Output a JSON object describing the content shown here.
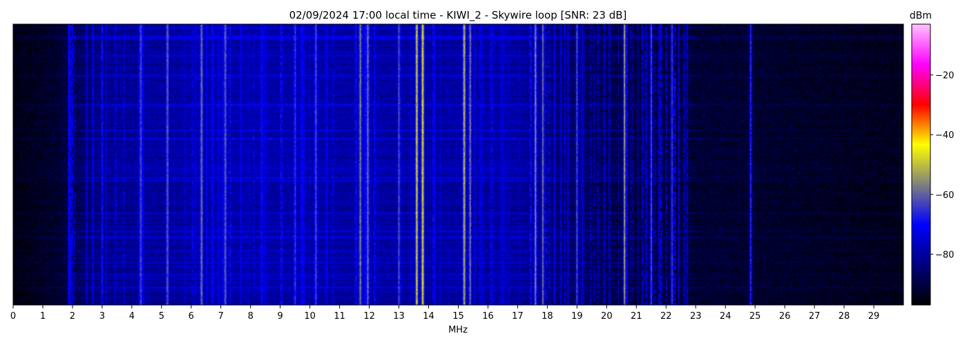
{
  "chart_data": {
    "type": "heatmap",
    "title": "02/09/2024 17:00 local time - KIWI_2 - Skywire loop [SNR: 23 dB]",
    "xlabel": "MHz",
    "ylabel": "",
    "xlim": [
      0,
      30
    ],
    "x_ticks": [
      "0",
      "1",
      "2",
      "3",
      "4",
      "5",
      "6",
      "7",
      "8",
      "9",
      "10",
      "11",
      "12",
      "13",
      "14",
      "15",
      "16",
      "17",
      "18",
      "19",
      "20",
      "21",
      "22",
      "23",
      "24",
      "25",
      "26",
      "27",
      "28",
      "29"
    ],
    "colorbar": {
      "label": "dBm",
      "range": [
        -97,
        -3
      ],
      "ticks": [
        "-20",
        "-40",
        "-60",
        "-80"
      ],
      "tick_values": [
        -20,
        -40,
        -60,
        -80
      ],
      "colormap": [
        "#000000",
        "#000080",
        "#0000ff",
        "#808080",
        "#ffff00",
        "#ff0000",
        "#ff00ff",
        "#ffc0ff"
      ]
    },
    "noise_floor_profile": [
      {
        "mhz": 0,
        "dbm": -95
      },
      {
        "mhz": 1.5,
        "dbm": -92
      },
      {
        "mhz": 3,
        "dbm": -82
      },
      {
        "mhz": 7,
        "dbm": -79
      },
      {
        "mhz": 12,
        "dbm": -80
      },
      {
        "mhz": 17,
        "dbm": -80
      },
      {
        "mhz": 18.5,
        "dbm": -86
      },
      {
        "mhz": 22,
        "dbm": -91
      },
      {
        "mhz": 30,
        "dbm": -94
      }
    ],
    "strong_signals": [
      {
        "mhz": 4.3,
        "dbm": -62
      },
      {
        "mhz": 5.2,
        "dbm": -60
      },
      {
        "mhz": 6.35,
        "dbm": -58
      },
      {
        "mhz": 7.15,
        "dbm": -60
      },
      {
        "mhz": 9.5,
        "dbm": -65
      },
      {
        "mhz": 10.2,
        "dbm": -62
      },
      {
        "mhz": 11.7,
        "dbm": -56
      },
      {
        "mhz": 11.95,
        "dbm": -58
      },
      {
        "mhz": 13.0,
        "dbm": -62
      },
      {
        "mhz": 13.6,
        "dbm": -48
      },
      {
        "mhz": 13.8,
        "dbm": -46
      },
      {
        "mhz": 15.2,
        "dbm": -50
      },
      {
        "mhz": 15.4,
        "dbm": -58
      },
      {
        "mhz": 17.6,
        "dbm": -56
      },
      {
        "mhz": 17.85,
        "dbm": -58
      },
      {
        "mhz": 19.0,
        "dbm": -62
      },
      {
        "mhz": 20.6,
        "dbm": -52
      },
      {
        "mhz": 21.5,
        "dbm": -62
      },
      {
        "mhz": 22.2,
        "dbm": -64
      },
      {
        "mhz": 24.85,
        "dbm": -66
      }
    ]
  }
}
